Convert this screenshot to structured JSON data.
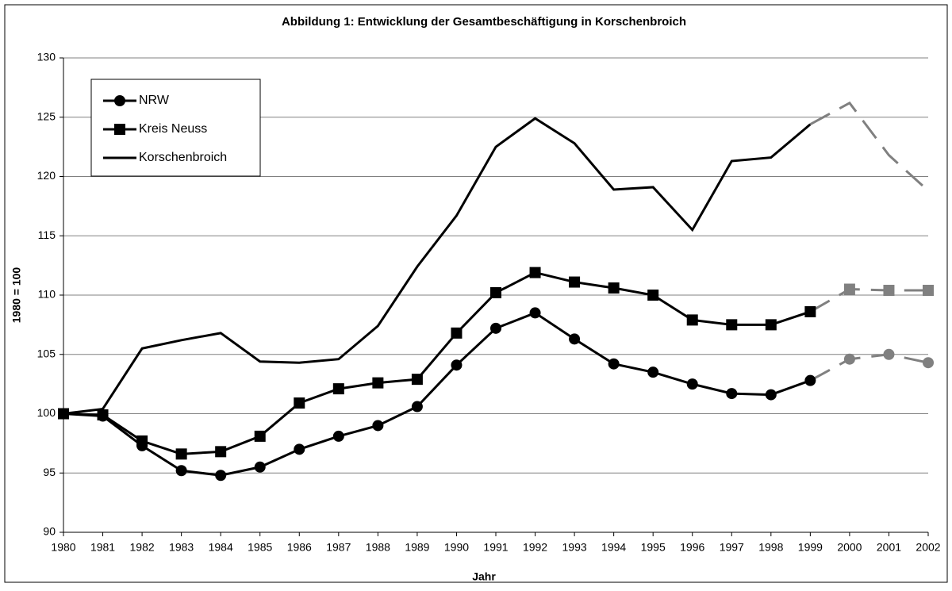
{
  "chart_data": {
    "type": "line",
    "title": "Abbildung 1: Entwicklung der Gesamtbeschäftigung in Korschenbroich",
    "x_label": "Jahr",
    "y_label": "1980 = 100",
    "categories": [
      "1980",
      "1981",
      "1982",
      "1983",
      "1984",
      "1985",
      "1986",
      "1987",
      "1988",
      "1989",
      "1990",
      "1991",
      "1992",
      "1993",
      "1994",
      "1995",
      "1996",
      "1997",
      "1998",
      "1999",
      "2000",
      "2001",
      "2002"
    ],
    "series": [
      {
        "name": "NRW",
        "color": "#000000",
        "marker": "circle",
        "values": [
          100,
          99.8,
          97.3,
          95.2,
          94.8,
          95.5,
          97.0,
          98.1,
          99.0,
          100.6,
          104.1,
          107.2,
          108.5,
          106.3,
          104.2,
          103.5,
          102.5,
          101.7,
          101.6,
          102.8,
          104.6,
          105.0,
          104.3
        ]
      },
      {
        "name": "Kreis Neuss",
        "color": "#000000",
        "marker": "square",
        "values": [
          100,
          99.9,
          97.7,
          96.6,
          96.8,
          98.1,
          100.9,
          102.1,
          102.6,
          102.9,
          106.8,
          110.2,
          111.9,
          111.1,
          110.6,
          110.0,
          107.9,
          107.5,
          107.5,
          108.6,
          110.5,
          110.4,
          110.4
        ]
      },
      {
        "name": "Korschenbroich",
        "color": "#000000",
        "marker": "none",
        "values": [
          100,
          100.4,
          105.5,
          106.2,
          106.8,
          104.4,
          104.3,
          104.6,
          107.4,
          112.4,
          116.7,
          122.5,
          124.9,
          122.8,
          118.9,
          119.1,
          115.5,
          121.3,
          121.6,
          124.4,
          126.2,
          121.8,
          118.8
        ]
      }
    ],
    "dashed_from": "1999",
    "dashed_color": "#808080",
    "ylim": [
      90,
      130
    ],
    "yticks": [
      90,
      95,
      100,
      105,
      110,
      115,
      120,
      125,
      130
    ],
    "grid": true,
    "legend": "top-left"
  }
}
